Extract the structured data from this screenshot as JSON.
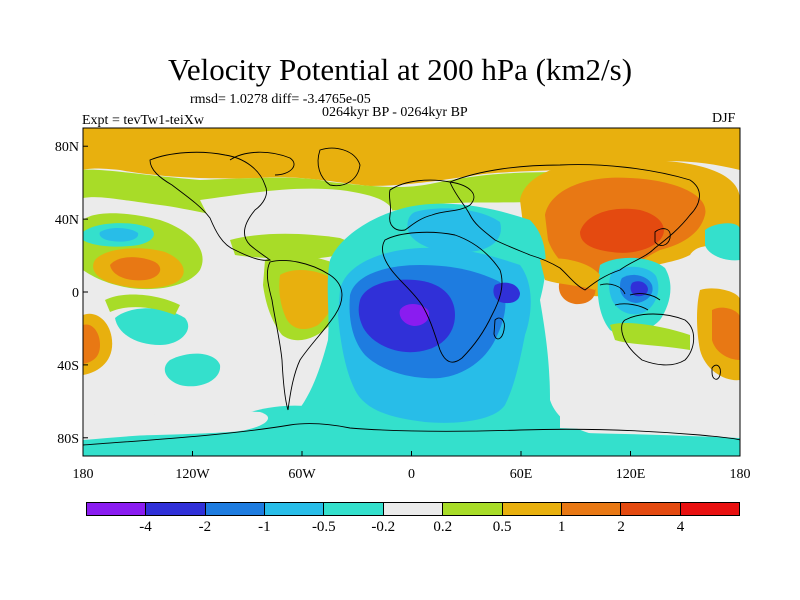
{
  "header": {
    "title": "Velocity Potential at 200 hPa (km2/s)",
    "stats": "rmsd= 1.0278 diff= -3.4765e-05",
    "experiment": "Expt = tevTw1-teiXw",
    "period": "0264kyr BP - 0264kyr BP",
    "season": "DJF"
  },
  "map": {
    "lon_labels": [
      "180",
      "120W",
      "60W",
      "0",
      "60E",
      "120E",
      "180"
    ],
    "lat_labels": [
      "80N",
      "40N",
      "0",
      "40S",
      "80S"
    ]
  },
  "colorbar": {
    "colors": [
      "#8a1cf0",
      "#3030d8",
      "#1e7ce0",
      "#28bde8",
      "#34e0cc",
      "#ebebeb",
      "#a8dc28",
      "#e8b00e",
      "#e87814",
      "#e44a10",
      "#e81010"
    ],
    "labels": [
      "-4",
      "-2",
      "-1",
      "-0.5",
      "-0.2",
      "0.2",
      "0.5",
      "1",
      "2",
      "4"
    ]
  }
}
